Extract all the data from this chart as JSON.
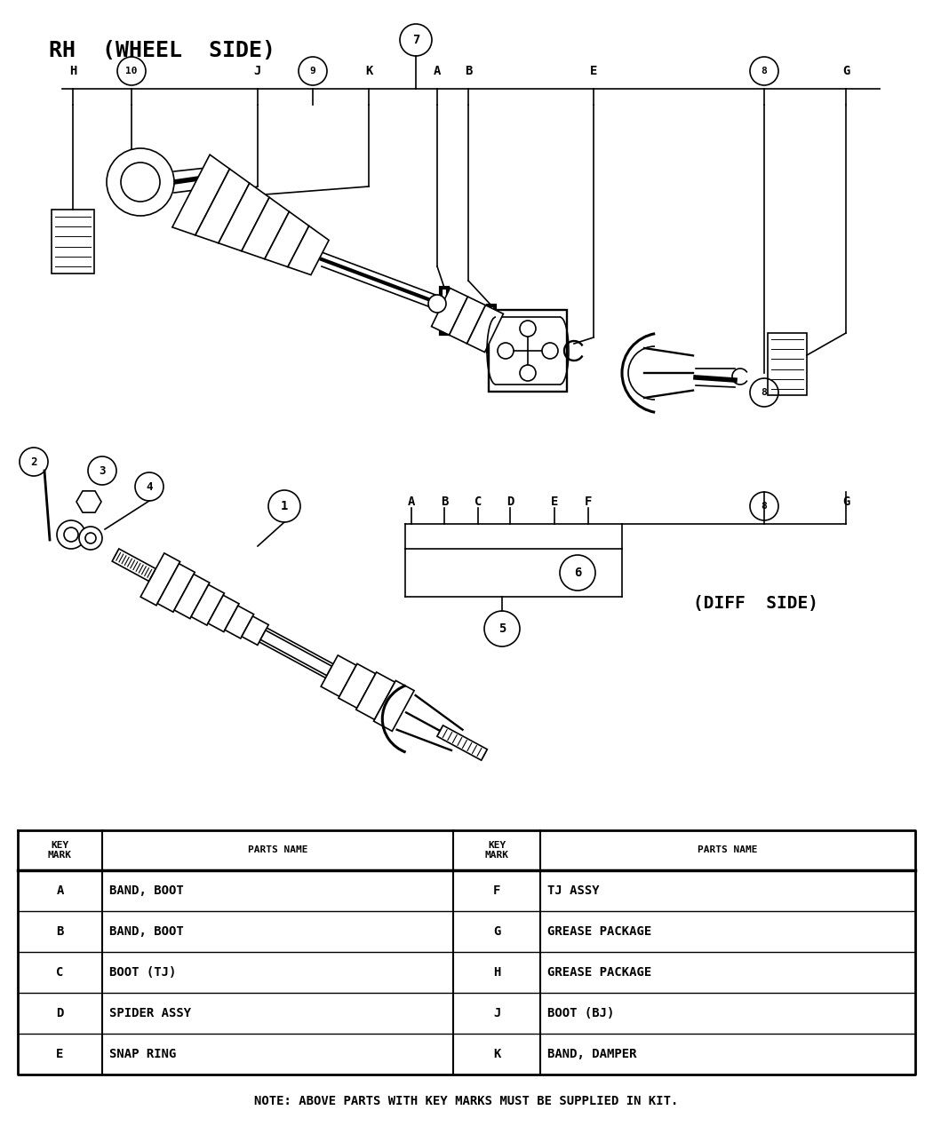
{
  "title": "RH  (WHEEL  SIDE)",
  "diff_side_label": "(DIFF  SIDE)",
  "bg_color": "#ffffff",
  "line_color": "#000000",
  "fig_width": 10.5,
  "fig_height": 12.77,
  "table_rows_left": [
    [
      "A",
      "BAND, BOOT"
    ],
    [
      "B",
      "BAND, BOOT"
    ],
    [
      "C",
      "BOOT (TJ)"
    ],
    [
      "D",
      "SPIDER ASSY"
    ],
    [
      "E",
      "SNAP RING"
    ]
  ],
  "table_rows_right": [
    [
      "F",
      "TJ ASSY"
    ],
    [
      "G",
      "GREASE PACKAGE"
    ],
    [
      "H",
      "GREASE PACKAGE"
    ],
    [
      "J",
      "BOOT (BJ)"
    ],
    [
      "K",
      "BAND, DAMPER"
    ]
  ],
  "note": "NOTE: ABOVE PARTS WITH KEY MARKS MUST BE SUPPLIED IN KIT."
}
